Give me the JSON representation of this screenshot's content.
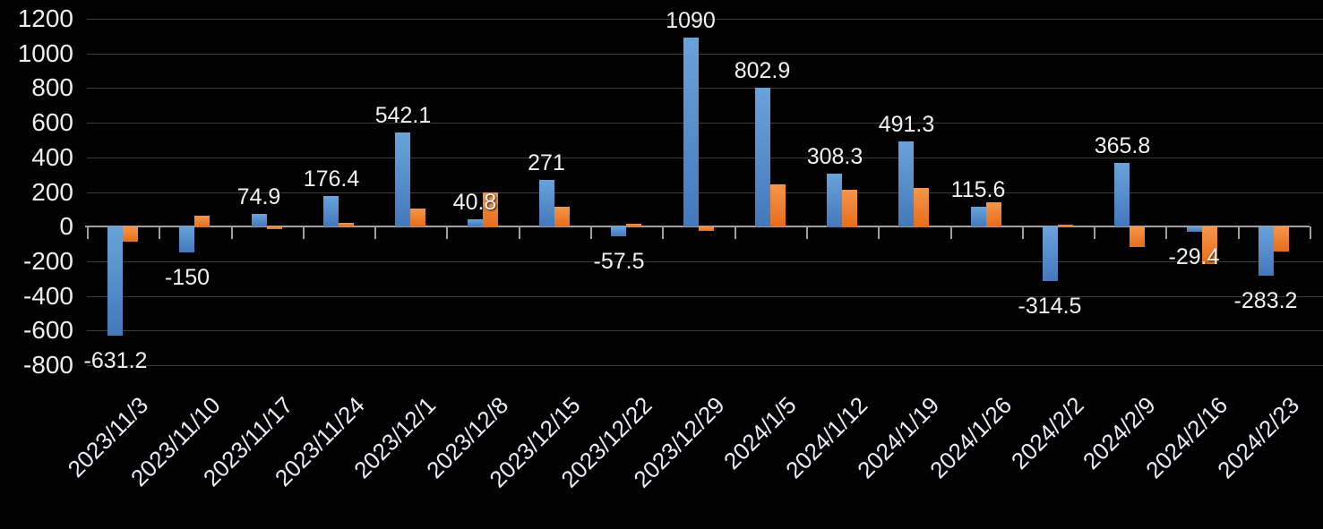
{
  "chart_data": {
    "type": "bar",
    "categories": [
      "2023/11/3",
      "2023/11/10",
      "2023/11/17",
      "2023/11/24",
      "2023/12/1",
      "2023/12/8",
      "2023/12/15",
      "2023/12/22",
      "2023/12/29",
      "2024/1/5",
      "2024/1/12",
      "2024/1/19",
      "2024/1/26",
      "2024/2/2",
      "2024/2/9",
      "2024/2/16",
      "2024/2/23"
    ],
    "series": [
      {
        "name": "blue-series",
        "color": "#4e8bcb",
        "values": [
          -631.2,
          -150,
          74.9,
          176.4,
          542.1,
          40.8,
          271,
          -57.5,
          1090,
          802.9,
          308.3,
          491.3,
          115.6,
          -314.5,
          365.8,
          -29.4,
          -283.2
        ]
      },
      {
        "name": "orange-series",
        "color": "#ed7d31",
        "values": [
          -88,
          65,
          -18,
          20,
          105,
          200,
          115,
          18,
          -25,
          245,
          215,
          225,
          140,
          12,
          -120,
          -215,
          -145
        ]
      }
    ],
    "data_labels": {
      "series": "blue-series",
      "values": [
        "-631.2",
        "-150",
        "74.9",
        "176.4",
        "542.1",
        "40.8",
        "271",
        "-57.5",
        "1090",
        "802.9",
        "308.3",
        "491.3",
        "115.6",
        "-314.5",
        "365.8",
        "-29.4",
        "-283.2"
      ]
    },
    "y_axis": {
      "min": -800,
      "max": 1200,
      "step": 200,
      "tick_labels": [
        "1200",
        "1000",
        "800",
        "600",
        "400",
        "200",
        "0",
        "-200",
        "-400",
        "-600",
        "-800"
      ]
    },
    "x_axis": {
      "label_rotation_deg": -45
    },
    "legend": "none",
    "grid": true,
    "colors": {
      "background": "#000000",
      "blue_top": "#69a3da",
      "blue_bottom": "#4478bc",
      "orange_top": "#f4964a",
      "orange_bottom": "#e66d1c",
      "gridline": "#3c3c3c",
      "axis_line": "#a0a0a0",
      "text": "#f2f2f2"
    }
  }
}
